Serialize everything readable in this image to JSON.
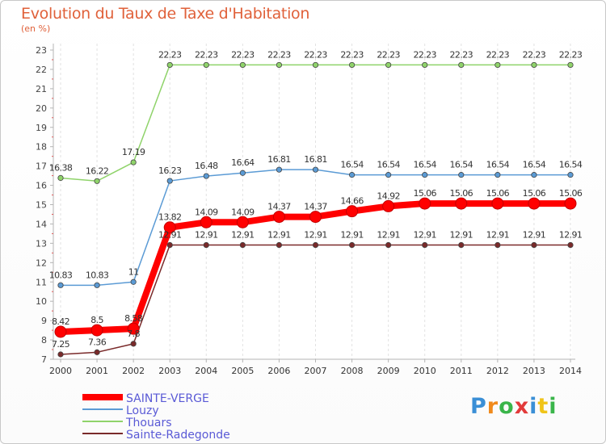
{
  "title": "Evolution du Taux de Taxe d'Habitation",
  "subtitle": "(en %)",
  "brand": {
    "letters": [
      "P",
      "r",
      "o",
      "x",
      "i",
      "t",
      "i"
    ],
    "colors": [
      "#3a8fd6",
      "#f08a1c",
      "#3ab54a",
      "#e23a3a",
      "#3a8fd6",
      "#f0c419",
      "#3ab54a"
    ]
  },
  "chart_data": {
    "type": "line",
    "title": "Evolution du Taux de Taxe d'Habitation",
    "ylabel": "(en %)",
    "xlabel": "",
    "x": [
      2000,
      2001,
      2002,
      2003,
      2004,
      2005,
      2006,
      2007,
      2008,
      2009,
      2010,
      2011,
      2012,
      2013,
      2014
    ],
    "ylim": [
      7,
      23
    ],
    "yticks": [
      7,
      8,
      9,
      10,
      11,
      12,
      13,
      14,
      15,
      16,
      17,
      18,
      19,
      20,
      21,
      22,
      23
    ],
    "grid": "vertical dashed",
    "legend": "bottom-left",
    "series": [
      {
        "name": "SAINTE-VERGE",
        "color": "#ff0000",
        "thick": true,
        "values": [
          8.42,
          8.5,
          8.58,
          13.82,
          14.09,
          14.09,
          14.37,
          14.37,
          14.66,
          14.92,
          15.06,
          15.06,
          15.06,
          15.06,
          15.06
        ],
        "labels": [
          "8.42",
          "8.5",
          "8.58",
          "13.82",
          "14.09",
          "14.09",
          "14.37",
          "14.37",
          "14.66",
          "14.92",
          "15.06",
          "15.06",
          "15.06",
          "15.06",
          "15.06"
        ]
      },
      {
        "name": "Louzy",
        "color": "#5b9bd5",
        "thick": false,
        "values": [
          10.83,
          10.83,
          11,
          16.23,
          16.48,
          16.64,
          16.81,
          16.81,
          16.54,
          16.54,
          16.54,
          16.54,
          16.54,
          16.54,
          16.54
        ],
        "labels": [
          "10.83",
          "10.83",
          "11",
          "16.23",
          "16.48",
          "16.64",
          "16.81",
          "16.81",
          "16.54",
          "16.54",
          "16.54",
          "16.54",
          "16.54",
          "16.54",
          "16.54"
        ]
      },
      {
        "name": "Thouars",
        "color": "#8fd36a",
        "thick": false,
        "values": [
          16.38,
          16.22,
          17.19,
          22.23,
          22.23,
          22.23,
          22.23,
          22.23,
          22.23,
          22.23,
          22.23,
          22.23,
          22.23,
          22.23,
          22.23
        ],
        "labels": [
          "16.38",
          "16.22",
          "17.19",
          "22.23",
          "22.23",
          "22.23",
          "22.23",
          "22.23",
          "22.23",
          "22.23",
          "22.23",
          "22.23",
          "22.23",
          "22.23",
          "22.23"
        ]
      },
      {
        "name": "Sainte-Radegonde",
        "color": "#7a2a2a",
        "thick": false,
        "values": [
          7.25,
          7.36,
          7.8,
          12.91,
          12.91,
          12.91,
          12.91,
          12.91,
          12.91,
          12.91,
          12.91,
          12.91,
          12.91,
          12.91,
          12.91
        ],
        "labels": [
          "7.25",
          "7.36",
          "7.8",
          "12.91",
          "12.91",
          "12.91",
          "12.91",
          "12.91",
          "12.91",
          "12.91",
          "12.91",
          "12.91",
          "12.91",
          "12.91",
          "12.91"
        ]
      }
    ]
  }
}
